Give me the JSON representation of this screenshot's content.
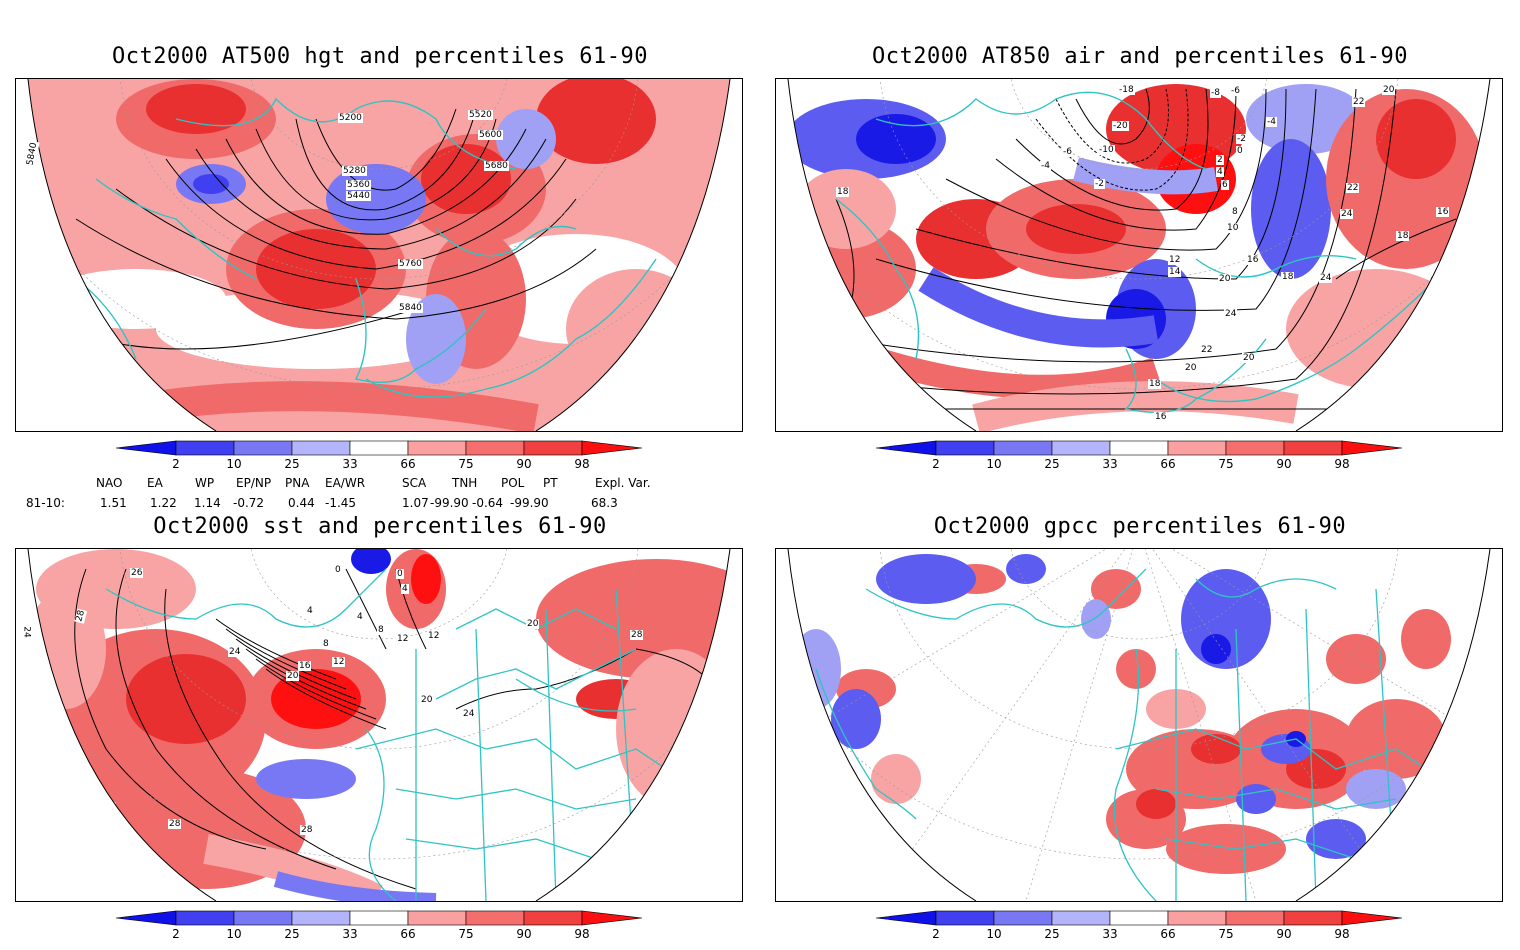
{
  "panels": [
    {
      "id": "p1",
      "title": "Oct2000 AT500 hgt and percentiles 61-90",
      "contours": [
        "5200",
        "5280",
        "5360",
        "5440",
        "5520",
        "5600",
        "5680",
        "5760",
        "5840",
        "5840"
      ]
    },
    {
      "id": "p2",
      "title": "Oct2000 AT850 air and percentiles 61-90",
      "contours": [
        "-18",
        "-20",
        "-10",
        "-8",
        "-6",
        "-6",
        "-4",
        "-4",
        "-2",
        "-2",
        "0",
        "2",
        "4",
        "6",
        "8",
        "10",
        "12",
        "14",
        "16",
        "16",
        "16",
        "18",
        "18",
        "18",
        "18",
        "20",
        "20",
        "20",
        "20",
        "22",
        "22",
        "22",
        "24",
        "24",
        "24"
      ]
    },
    {
      "id": "p3",
      "title": "Oct2000 sst and percentiles 61-90",
      "contours": [
        "26",
        "28",
        "24",
        "0",
        "0",
        "4",
        "4",
        "4",
        "8",
        "8",
        "12",
        "12",
        "12",
        "16",
        "20",
        "20",
        "24",
        "20",
        "24",
        "28",
        "28",
        "28"
      ]
    },
    {
      "id": "p4",
      "title": "Oct2000 gpcc percentiles 61-90",
      "contours": []
    }
  ],
  "colorbar": {
    "ticks": [
      "2",
      "10",
      "25",
      "33",
      "66",
      "75",
      "90",
      "98"
    ],
    "colors": [
      "#1010e8",
      "#4040f0",
      "#7878f5",
      "#b4b4fa",
      "#ffffff",
      "#faa0a0",
      "#f56e6e",
      "#f04040",
      "#fa1010"
    ]
  },
  "indices": {
    "row_label": "81-10:",
    "headers": [
      "NAO",
      "EA",
      "WP",
      "EP/NP",
      "PNA",
      "EA/WR",
      "SCA",
      "TNH",
      "POL",
      "PT",
      "Expl. Var."
    ],
    "values": [
      "1.51",
      "1.22",
      "1.14",
      "-0.72",
      "0.44",
      "-1.45",
      "1.07",
      "-99.90",
      "-0.64",
      "-99.90",
      "68.3"
    ]
  },
  "map_colors": {
    "coast": "#2ec4c4",
    "blue_dark": "#1a1ae6",
    "blue_mid": "#5c5cf0",
    "blue_light": "#a0a0f5",
    "red_light": "#f8a4a4",
    "red_mid": "#f06a6a",
    "red_dark": "#e83030",
    "red_max": "#ff1010"
  }
}
